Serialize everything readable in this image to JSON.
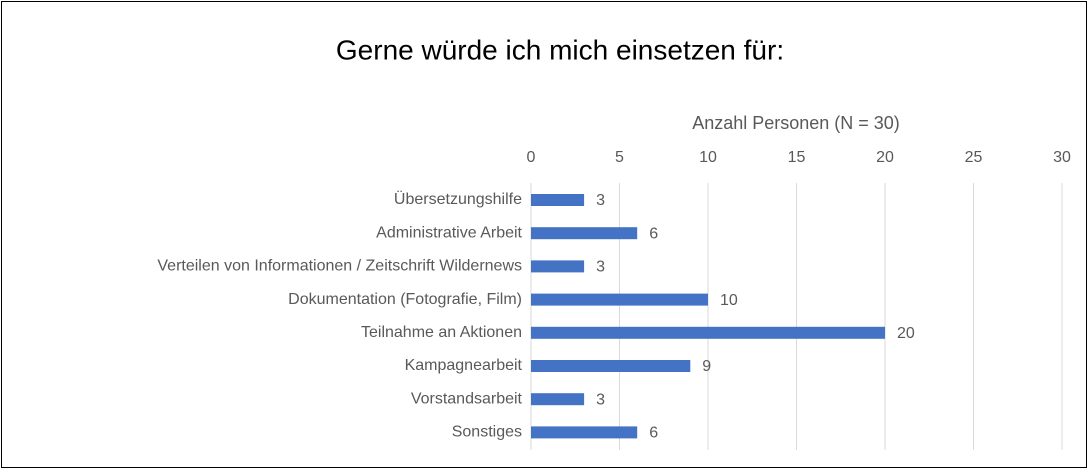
{
  "chart_data": {
    "type": "bar",
    "title": "Gerne würde ich mich einsetzen für:",
    "xlabel": "Anzahl Personen (N = 30)",
    "categories": [
      "Übersetzungshilfe",
      "Administrative Arbeit",
      "Verteilen von Informationen / Zeitschrift Wildernews",
      "Dokumentation (Fotografie, Film)",
      "Teilnahme an Aktionen",
      "Kampagnearbeit",
      "Vorstandsarbeit",
      "Sonstiges"
    ],
    "values": [
      3,
      6,
      3,
      10,
      20,
      9,
      3,
      6
    ],
    "color": "#4472c4",
    "xlim": [
      0,
      30
    ],
    "xticks": [
      0,
      5,
      10,
      15,
      20,
      25,
      30
    ],
    "grid": true
  }
}
